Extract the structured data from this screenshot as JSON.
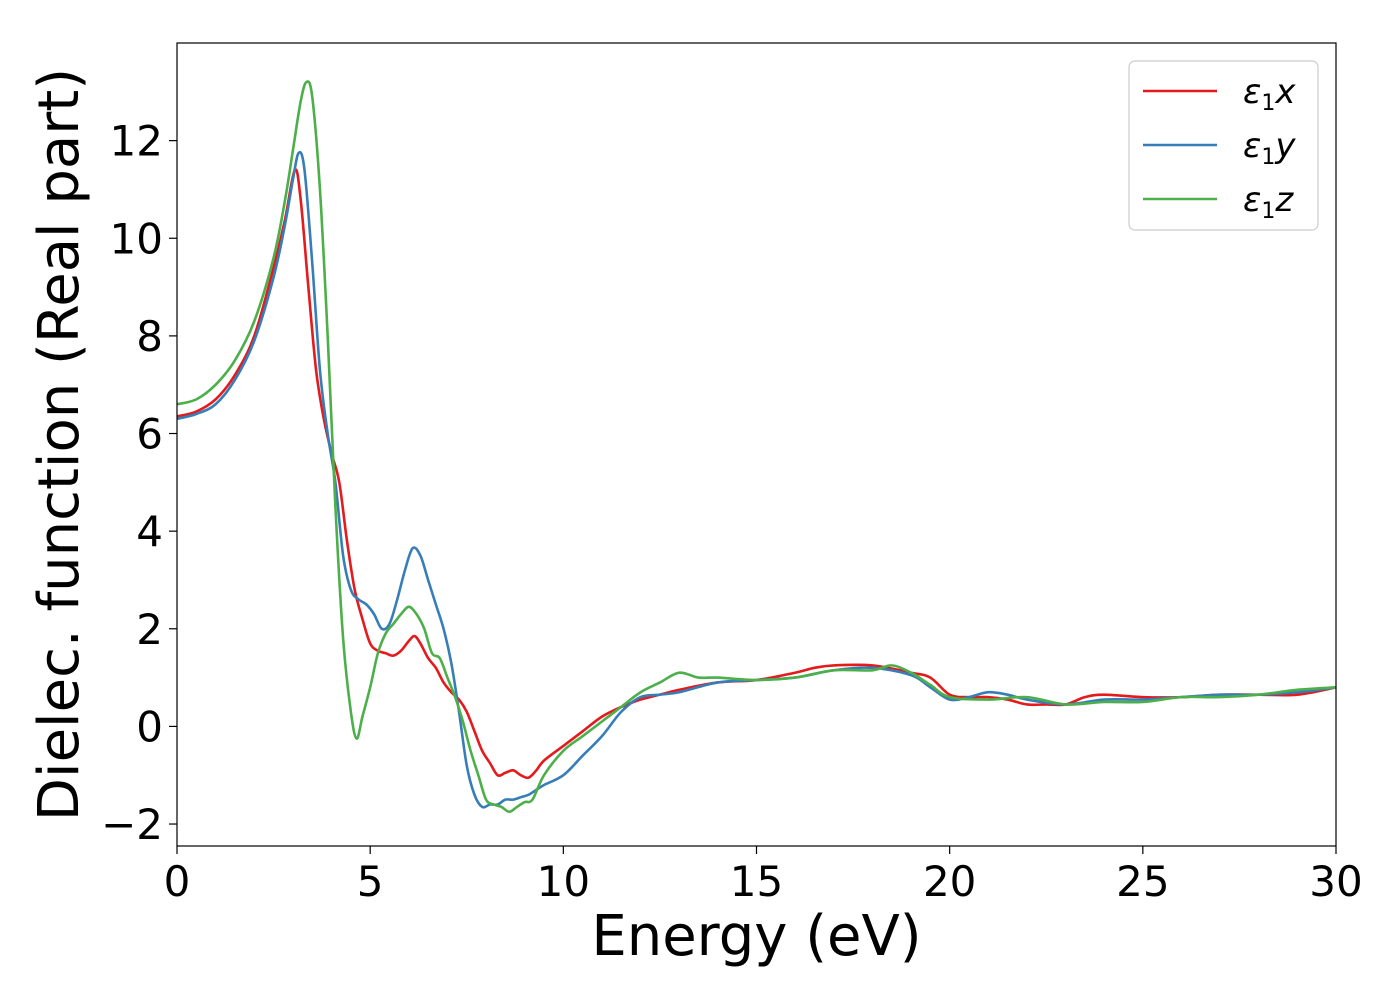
{
  "chart_data": {
    "type": "line",
    "xlabel": "Energy (eV)",
    "ylabel": "Dielec. function (Real part)",
    "xlim": [
      0,
      30
    ],
    "ylim": [
      -2.45,
      14
    ],
    "xticks": [
      0,
      5,
      10,
      15,
      20,
      25,
      30
    ],
    "yticks": [
      -2,
      0,
      2,
      4,
      6,
      8,
      10,
      12
    ],
    "legend_position": "top-right",
    "grid": false,
    "series": [
      {
        "name": "ε₁x",
        "legend_base": "ε",
        "legend_sub": "1",
        "legend_suffix": "x",
        "color": "#e41a1c",
        "x": [
          0,
          0.5,
          1,
          1.5,
          2,
          2.5,
          2.8,
          3.05,
          3.2,
          3.4,
          3.6,
          3.8,
          4.0,
          4.2,
          4.4,
          4.6,
          4.8,
          5.0,
          5.2,
          5.4,
          5.6,
          5.8,
          6.0,
          6.15,
          6.3,
          6.5,
          6.7,
          6.9,
          7.1,
          7.3,
          7.5,
          7.7,
          7.9,
          8.1,
          8.3,
          8.5,
          8.7,
          8.9,
          9.1,
          9.3,
          9.5,
          10.0,
          10.5,
          11.0,
          11.5,
          12.0,
          12.5,
          13.0,
          14.0,
          15.0,
          16.0,
          16.5,
          17.0,
          18.0,
          19.0,
          19.5,
          20.0,
          20.5,
          21.0,
          21.5,
          22.0,
          22.5,
          23.0,
          23.5,
          24.0,
          25.0,
          26.0,
          27.0,
          28.0,
          29.0,
          30.0
        ],
        "values": [
          6.35,
          6.45,
          6.7,
          7.2,
          8.0,
          9.4,
          10.4,
          11.4,
          10.8,
          9.0,
          7.3,
          6.3,
          5.6,
          5.0,
          3.8,
          2.8,
          2.2,
          1.7,
          1.55,
          1.5,
          1.45,
          1.55,
          1.75,
          1.85,
          1.7,
          1.4,
          1.2,
          0.9,
          0.7,
          0.55,
          0.3,
          -0.1,
          -0.5,
          -0.75,
          -1.0,
          -0.95,
          -0.9,
          -1.0,
          -1.05,
          -0.9,
          -0.7,
          -0.4,
          -0.1,
          0.2,
          0.4,
          0.55,
          0.65,
          0.75,
          0.9,
          0.95,
          1.1,
          1.2,
          1.25,
          1.25,
          1.1,
          1.0,
          0.65,
          0.6,
          0.6,
          0.55,
          0.45,
          0.45,
          0.45,
          0.6,
          0.65,
          0.6,
          0.6,
          0.65,
          0.65,
          0.65,
          0.8
        ]
      },
      {
        "name": "ε₁y",
        "legend_base": "ε",
        "legend_sub": "1",
        "legend_suffix": "y",
        "color": "#377eb8",
        "x": [
          0,
          0.5,
          1,
          1.5,
          2,
          2.5,
          2.8,
          3.0,
          3.15,
          3.3,
          3.5,
          3.7,
          3.9,
          4.1,
          4.3,
          4.5,
          4.7,
          4.9,
          5.1,
          5.3,
          5.5,
          5.7,
          5.9,
          6.1,
          6.3,
          6.5,
          6.7,
          6.9,
          7.1,
          7.3,
          7.5,
          7.7,
          7.9,
          8.1,
          8.3,
          8.5,
          8.7,
          8.9,
          9.1,
          9.3,
          9.5,
          10.0,
          10.5,
          11.0,
          11.5,
          12.0,
          12.5,
          13.0,
          14.0,
          15.0,
          16.0,
          17.0,
          18.0,
          19.0,
          19.5,
          20.0,
          20.5,
          21.0,
          21.5,
          22.0,
          23.0,
          24.0,
          25.0,
          26.0,
          27.0,
          28.0,
          29.0,
          30.0
        ],
        "values": [
          6.3,
          6.4,
          6.6,
          7.1,
          7.9,
          9.2,
          10.3,
          11.2,
          11.75,
          11.4,
          9.5,
          7.3,
          6.0,
          5.0,
          3.5,
          2.8,
          2.6,
          2.5,
          2.3,
          2.0,
          2.1,
          2.6,
          3.2,
          3.65,
          3.5,
          3.0,
          2.5,
          2.0,
          1.3,
          0.3,
          -0.8,
          -1.4,
          -1.65,
          -1.6,
          -1.6,
          -1.5,
          -1.5,
          -1.45,
          -1.4,
          -1.3,
          -1.2,
          -1.0,
          -0.6,
          -0.2,
          0.3,
          0.6,
          0.65,
          0.7,
          0.9,
          0.95,
          1.0,
          1.15,
          1.2,
          1.05,
          0.8,
          0.55,
          0.6,
          0.7,
          0.65,
          0.55,
          0.45,
          0.55,
          0.55,
          0.6,
          0.65,
          0.65,
          0.7,
          0.8
        ]
      },
      {
        "name": "ε₁z",
        "legend_base": "ε",
        "legend_sub": "1",
        "legend_suffix": "z",
        "color": "#4daf4a",
        "x": [
          0,
          0.5,
          1,
          1.5,
          2,
          2.5,
          2.8,
          3.0,
          3.2,
          3.35,
          3.5,
          3.7,
          3.9,
          4.1,
          4.3,
          4.5,
          4.65,
          4.8,
          5.0,
          5.2,
          5.4,
          5.6,
          5.8,
          6.0,
          6.2,
          6.4,
          6.6,
          6.8,
          7.0,
          7.2,
          7.4,
          7.6,
          7.8,
          8.0,
          8.2,
          8.4,
          8.6,
          8.8,
          9.0,
          9.2,
          9.5,
          10.0,
          10.5,
          11.0,
          11.5,
          12.0,
          12.5,
          13.0,
          13.5,
          14.0,
          15.0,
          16.0,
          17.0,
          18.0,
          18.5,
          19.0,
          19.5,
          20.0,
          21.0,
          22.0,
          23.0,
          24.0,
          25.0,
          26.0,
          27.0,
          28.0,
          29.0,
          30.0
        ],
        "values": [
          6.6,
          6.7,
          7.0,
          7.5,
          8.3,
          9.6,
          10.8,
          11.8,
          12.8,
          13.2,
          12.9,
          11.0,
          8.0,
          4.5,
          1.8,
          0.3,
          -0.25,
          0.2,
          0.8,
          1.5,
          1.9,
          2.1,
          2.3,
          2.45,
          2.3,
          2.0,
          1.5,
          1.4,
          1.0,
          0.6,
          0.1,
          -0.5,
          -1.0,
          -1.5,
          -1.6,
          -1.65,
          -1.75,
          -1.65,
          -1.55,
          -1.5,
          -1.0,
          -0.5,
          -0.2,
          0.1,
          0.4,
          0.7,
          0.9,
          1.1,
          1.0,
          1.0,
          0.95,
          1.0,
          1.15,
          1.15,
          1.25,
          1.1,
          0.85,
          0.6,
          0.55,
          0.6,
          0.45,
          0.5,
          0.5,
          0.6,
          0.6,
          0.65,
          0.75,
          0.8
        ]
      }
    ]
  }
}
